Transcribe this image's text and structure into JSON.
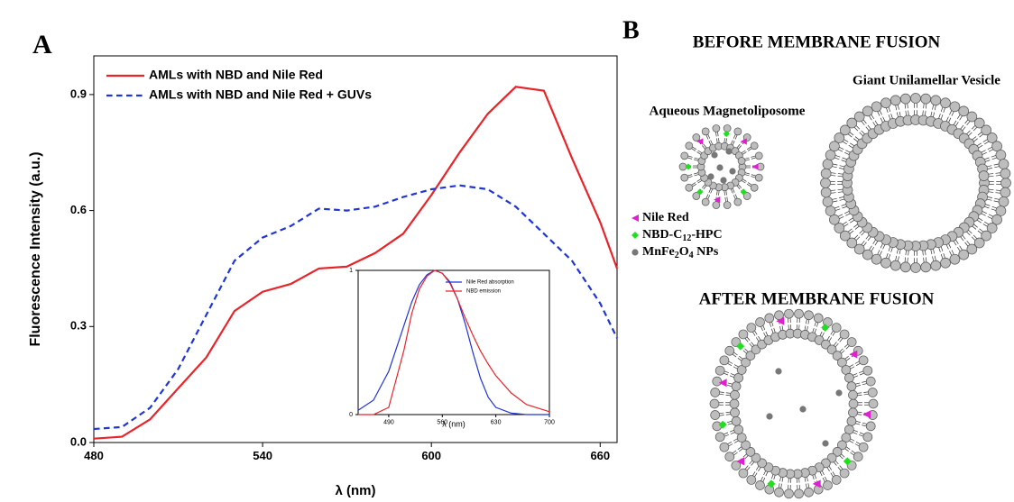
{
  "panels": [
    "A",
    "B"
  ],
  "chart_data": [
    {
      "type": "line",
      "x_label": "λ (nm)",
      "y_label": "Fluorescence Intensity (a.u.)",
      "x": [
        480,
        490,
        500,
        510,
        520,
        530,
        540,
        550,
        560,
        570,
        580,
        590,
        600,
        610,
        620,
        630,
        640,
        650,
        660,
        666
      ],
      "series": [
        {
          "name": "AMLs with NBD and Nile Red",
          "color": "#e8242a",
          "line_style": "solid",
          "values": [
            0.01,
            0.015,
            0.06,
            0.14,
            0.22,
            0.34,
            0.39,
            0.41,
            0.45,
            0.455,
            0.49,
            0.54,
            0.64,
            0.75,
            0.85,
            0.92,
            0.91,
            0.735,
            0.57,
            0.45
          ]
        },
        {
          "name": "AMLs with NBD and Nile Red + GUVs",
          "color": "#1f35d6",
          "line_style": "dashed",
          "values": [
            0.035,
            0.04,
            0.09,
            0.19,
            0.33,
            0.47,
            0.53,
            0.56,
            0.605,
            0.6,
            0.61,
            0.635,
            0.655,
            0.665,
            0.655,
            0.61,
            0.54,
            0.47,
            0.36,
            0.27
          ]
        }
      ],
      "xlim": [
        480,
        666
      ],
      "xticks": [
        480,
        540,
        600,
        660
      ],
      "ylim": [
        0,
        1.0
      ],
      "yticks": [
        {
          "value": 0,
          "label": "0.0"
        },
        0.3,
        0.6,
        0.9
      ],
      "legend": "upper left",
      "grid": false
    },
    {
      "type": "line",
      "x_label": "λ (nm)",
      "x": [
        450,
        470,
        490,
        510,
        520,
        530,
        540,
        550,
        560,
        570,
        580,
        590,
        600,
        610,
        620,
        630,
        650,
        670,
        700
      ],
      "series": [
        {
          "name": "Nile Red absorption",
          "color": "#1f35d6",
          "line_style": "solid",
          "values": [
            0.03,
            0.1,
            0.3,
            0.62,
            0.78,
            0.9,
            0.97,
            1.0,
            0.98,
            0.92,
            0.8,
            0.63,
            0.43,
            0.25,
            0.12,
            0.05,
            0.01,
            0,
            0
          ]
        },
        {
          "name": "NBD emission",
          "color": "#e8242a",
          "line_style": "solid",
          "values": [
            0,
            0,
            0.05,
            0.45,
            0.7,
            0.87,
            0.96,
            1.0,
            0.98,
            0.91,
            0.8,
            0.67,
            0.55,
            0.44,
            0.35,
            0.27,
            0.15,
            0.07,
            0.02
          ]
        }
      ],
      "xlim": [
        450,
        700
      ],
      "xticks": [
        490,
        560,
        630,
        700
      ],
      "ylim": [
        0,
        1
      ],
      "yticks": [
        0,
        1
      ],
      "legend": "upper right",
      "grid": false
    }
  ],
  "diagram": {
    "before_title": "BEFORE MEMBRANE FUSION",
    "guv_label": "Giant Unilamellar Vesicle",
    "aml_label": "Aqueous Magnetoliposome",
    "legend": [
      [
        "Nile Red"
      ],
      [
        "NBD-C",
        "12",
        "-HPC"
      ],
      [
        "MnFe",
        "2",
        "O",
        "4",
        " NPs"
      ]
    ],
    "after_title": "AFTER MEMBRANE FUSION"
  }
}
